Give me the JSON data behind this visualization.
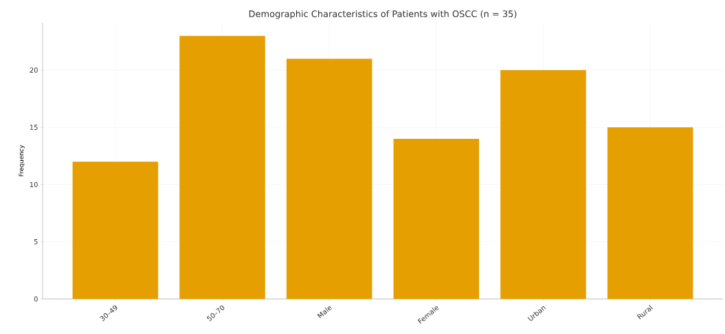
{
  "chart_data": {
    "type": "bar",
    "title": "Demographic Characteristics of Patients with OSCC (n = 35)",
    "ylabel": "Frequency",
    "categories": [
      "30–49",
      "50–70",
      "Male",
      "Female",
      "Urban",
      "Rural"
    ],
    "values": [
      12,
      23,
      21,
      14,
      20,
      15
    ],
    "color": "#e69f00",
    "ylim": [
      0,
      24.15
    ],
    "yticks": [
      0,
      5,
      10,
      15,
      20
    ],
    "grid": true
  }
}
